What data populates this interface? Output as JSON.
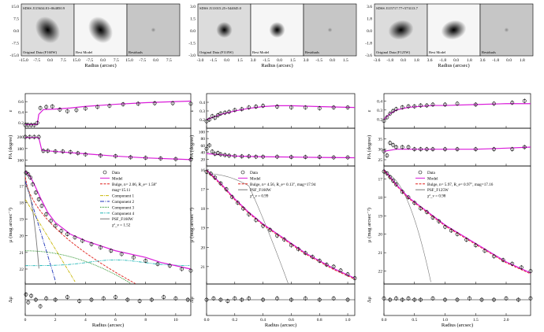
{
  "figure": {
    "panels": [
      {
        "id": "left",
        "images": {
          "object_name": "SDSS J115634.81+064850.9",
          "labels": [
            "Original Data (F160W)",
            "Best Model",
            "Residuals"
          ],
          "xticks": [
            "-15.0",
            "-7.5",
            "0.0",
            "7.5",
            "15.0",
            "-7.5",
            "0.0",
            "7.5",
            "15.0",
            "-7.5",
            "0.0",
            "7.5"
          ],
          "yticks": [
            "15.0",
            "7.5",
            "0.0",
            "-7.5",
            "-15.0"
          ],
          "xlabel": "Radius (arcsec)"
        },
        "legend": [
          "Data",
          "Model",
          "Bulge, n= 2.06, R_e= 1.58\"",
          "mag=15.11",
          "Component 1",
          "Component 2",
          "Component 3",
          "Component 4",
          "PSF_F160W",
          "χ²_ν = 1.52"
        ]
      },
      {
        "id": "middle",
        "images": {
          "object_name": "SDSS J111015.25+544045.0",
          "labels": [
            "Original Data (F110W)",
            "Best Model",
            "Residuals"
          ],
          "xticks": [
            "-3.0",
            "-1.5",
            "0.0",
            "1.5",
            "3.0",
            "-1.5",
            "0.0",
            "1.5",
            "3.0",
            "-1.5",
            "0.0",
            "1.5"
          ],
          "yticks": [
            "3.0",
            "1.5",
            "0.0",
            "-1.5",
            "-3.0"
          ],
          "xlabel": "Radius (arcsec)"
        },
        "legend": [
          "Data",
          "Model",
          "Bulge, n= 4.56, R_e= 0.13\", mag=17.94",
          "PSF_F160W",
          "χ²_ν = 0.99"
        ]
      },
      {
        "id": "right",
        "images": {
          "object_name": "SDSS J115717.77+573113.7",
          "labels": [
            "Original Data (F125W)",
            "Best Model",
            "Residuals"
          ],
          "xticks": [
            "-3.6",
            "-1.8",
            "0.0",
            "1.8",
            "3.6",
            "-1.8",
            "0.0",
            "1.8",
            "3.6",
            "-1.8",
            "0.0",
            "1.8"
          ],
          "yticks": [
            "3.6",
            "1.8",
            "0.0",
            "-1.8",
            "-3.6"
          ],
          "xlabel": "Radius (arcsec)"
        },
        "legend": [
          "Data",
          "Model",
          "Bulge, n= 5.97, R_e= 0.97\", mag=17.16",
          "PSF_F125W",
          "χ²_ν = 0.98"
        ]
      }
    ],
    "colors": {
      "model": "#d91bd9",
      "bulge": "#e0201b",
      "comp1": "#c9b80a",
      "comp2": "#1c32b8",
      "comp3": "#1b8a1b",
      "comp4": "#20b6b6",
      "psf": "#777777"
    }
  },
  "chart_data": [
    {
      "type": "scatter",
      "panel": "left",
      "title": "",
      "xlabel": "Radius (arcsec)",
      "xlim": [
        0,
        11
      ],
      "xticks": [
        0,
        2,
        4,
        6,
        8,
        10
      ],
      "subplots": [
        {
          "ylabel": "ε",
          "ylim": [
            0.1,
            0.75
          ],
          "yticks": [
            0.2,
            0.4,
            0.6
          ],
          "x": [
            0.0,
            0.2,
            0.4,
            0.6,
            0.8,
            1.0,
            1.4,
            1.8,
            2.3,
            2.8,
            3.4,
            4.0,
            4.8,
            5.6,
            6.5,
            7.5,
            8.6,
            9.8,
            11.0
          ],
          "y": [
            0.16,
            0.16,
            0.16,
            0.16,
            0.2,
            0.48,
            0.5,
            0.51,
            0.45,
            0.42,
            0.44,
            0.47,
            0.5,
            0.52,
            0.55,
            0.56,
            0.57,
            0.57,
            0.56
          ],
          "model_x": [
            0.0,
            0.8,
            0.9,
            1.2,
            2,
            3,
            4,
            6,
            8,
            10,
            11
          ],
          "model_y": [
            0.17,
            0.17,
            0.36,
            0.45,
            0.46,
            0.48,
            0.51,
            0.55,
            0.58,
            0.6,
            0.61
          ]
        },
        {
          "ylabel": "PA (degree)",
          "ylim": [
            150,
            215
          ],
          "yticks": [
            160,
            180,
            200
          ],
          "x": [
            0.0,
            0.3,
            0.6,
            0.9,
            1.2,
            1.5,
            2.0,
            2.5,
            3.0,
            3.5,
            4.0,
            5.0,
            6.0,
            7.0,
            8.0,
            9.0,
            10.0,
            11.0
          ],
          "y": [
            200,
            200,
            200,
            200,
            176,
            176,
            175,
            175,
            174,
            172,
            170,
            168,
            167,
            165,
            164,
            163,
            162,
            161
          ],
          "model_x": [
            0,
            0.9,
            1.1,
            2,
            4,
            6,
            8,
            11
          ],
          "model_y": [
            199,
            199,
            177,
            175,
            171,
            167,
            164,
            161
          ]
        },
        {
          "ylabel": "μ (mag arcsec⁻²)",
          "ylim": [
            22.9,
            15.8
          ],
          "yticks": [
            17,
            18,
            19,
            20,
            21,
            22
          ],
          "x": [
            0.05,
            0.2,
            0.35,
            0.5,
            0.7,
            0.9,
            1.1,
            1.4,
            1.7,
            2.0,
            2.4,
            2.8,
            3.3,
            3.8,
            4.4,
            5.0,
            5.7,
            6.4,
            7.2,
            8.0,
            8.8,
            9.6,
            10.4,
            11.0
          ],
          "y": [
            16.2,
            16.3,
            16.5,
            16.9,
            17.4,
            17.8,
            18.2,
            18.7,
            19.1,
            19.4,
            19.7,
            19.9,
            20.1,
            20.3,
            20.5,
            20.7,
            20.9,
            21.1,
            21.3,
            21.5,
            21.7,
            21.8,
            22.0,
            22.1
          ],
          "model_x": [
            0,
            0.3,
            0.6,
            1,
            1.5,
            2,
            3,
            4,
            5,
            6,
            7,
            8,
            9,
            10,
            11
          ],
          "model_y": [
            16.1,
            16.4,
            16.9,
            17.7,
            18.6,
            19.2,
            19.9,
            20.3,
            20.6,
            20.9,
            21.1,
            21.3,
            21.6,
            21.8,
            22.0
          ]
        },
        {
          "ylabel": "Δμ",
          "ylim": [
            -0.6,
            0.6
          ],
          "yticks": [],
          "x": [
            0.05,
            0.2,
            0.4,
            0.7,
            1.0,
            1.4,
            2.0,
            2.8,
            3.6,
            4.4,
            5.2,
            6.0,
            6.8,
            7.6,
            8.4,
            9.2,
            10.0,
            10.8
          ],
          "y": [
            0.2,
            -0.1,
            0.15,
            0.0,
            -0.25,
            0.05,
            0.0,
            0.1,
            -0.05,
            0.0,
            0.05,
            0.1,
            0.0,
            -0.05,
            0.0,
            0.1,
            0.05,
            0.0
          ]
        }
      ]
    },
    {
      "type": "scatter",
      "panel": "middle",
      "xlabel": "Radius (arcsec)",
      "xlim": [
        0,
        1.05
      ],
      "xticks": [
        0.0,
        0.2,
        0.4,
        0.6,
        0.8,
        1.0
      ],
      "subplots": [
        {
          "ylabel": "ε",
          "ylim": [
            0.1,
            0.5
          ],
          "yticks": [
            0.2,
            0.3,
            0.4
          ],
          "x": [
            0.0,
            0.02,
            0.04,
            0.06,
            0.08,
            0.1,
            0.13,
            0.16,
            0.2,
            0.25,
            0.3,
            0.35,
            0.4,
            0.5,
            0.6,
            0.7,
            0.8,
            0.9,
            1.0
          ],
          "y": [
            0.18,
            0.2,
            0.24,
            0.22,
            0.25,
            0.27,
            0.28,
            0.29,
            0.31,
            0.32,
            0.34,
            0.35,
            0.36,
            0.35,
            0.34,
            0.34,
            0.33,
            0.34,
            0.34
          ],
          "model_x": [
            0,
            0.05,
            0.1,
            0.2,
            0.3,
            0.4,
            0.5,
            0.6,
            0.8,
            1.05
          ],
          "model_y": [
            0.2,
            0.23,
            0.26,
            0.3,
            0.33,
            0.35,
            0.36,
            0.36,
            0.35,
            0.34
          ]
        },
        {
          "ylabel": "PA (degree)",
          "ylim": [
            0,
            110
          ],
          "yticks": [
            20,
            40,
            60,
            80,
            100
          ],
          "x": [
            0.0,
            0.02,
            0.04,
            0.06,
            0.08,
            0.1,
            0.13,
            0.16,
            0.2,
            0.25,
            0.3,
            0.35,
            0.4,
            0.5,
            0.6,
            0.7,
            0.8,
            0.9,
            1.0
          ],
          "y": [
            50,
            60,
            42,
            35,
            38,
            34,
            32,
            30,
            29,
            28,
            28,
            27,
            27,
            27,
            26,
            26,
            26,
            25,
            25
          ],
          "model_x": [
            0,
            0.1,
            0.2,
            0.4,
            0.6,
            0.8,
            1.05
          ],
          "model_y": [
            36,
            33,
            29,
            27,
            26,
            25,
            24
          ]
        },
        {
          "ylabel": "μ (mag arcsec⁻²)",
          "ylim": [
            21.9,
            15.8
          ],
          "yticks": [
            16,
            17,
            18,
            19,
            20,
            21
          ],
          "x": [
            0.0,
            0.03,
            0.06,
            0.1,
            0.14,
            0.18,
            0.22,
            0.26,
            0.3,
            0.35,
            0.4,
            0.45,
            0.5,
            0.55,
            0.6,
            0.65,
            0.7,
            0.75,
            0.8,
            0.85,
            0.9,
            0.95,
            1.0,
            1.05
          ],
          "y": [
            16.1,
            16.2,
            16.4,
            16.7,
            17.0,
            17.4,
            17.7,
            18.0,
            18.3,
            18.6,
            18.9,
            19.1,
            19.4,
            19.6,
            19.9,
            20.1,
            20.3,
            20.5,
            20.7,
            20.9,
            21.0,
            21.2,
            21.4,
            21.6
          ],
          "model_x": [
            0,
            0.1,
            0.2,
            0.3,
            0.4,
            0.5,
            0.6,
            0.7,
            0.8,
            0.9,
            1.05
          ],
          "model_y": [
            16.0,
            16.7,
            17.5,
            18.2,
            18.8,
            19.3,
            19.8,
            20.3,
            20.7,
            21.1,
            21.6
          ]
        },
        {
          "ylabel": "Δμ",
          "ylim": [
            -0.6,
            0.6
          ],
          "yticks": [],
          "x": [
            0.0,
            0.05,
            0.1,
            0.15,
            0.2,
            0.25,
            0.3,
            0.4,
            0.5,
            0.6,
            0.7,
            0.8,
            0.9,
            1.0
          ],
          "y": [
            0.0,
            0.05,
            0.0,
            -0.05,
            0.05,
            0.0,
            0.05,
            0.0,
            0.05,
            0.0,
            0.05,
            0.0,
            0.05,
            0.0
          ]
        }
      ]
    },
    {
      "type": "scatter",
      "panel": "right",
      "xlabel": "Radius (arcsec)",
      "xlim": [
        0,
        2.4
      ],
      "xticks": [
        0.0,
        0.5,
        1.0,
        1.5,
        2.0
      ],
      "subplots": [
        {
          "ylabel": "ε",
          "ylim": [
            0.1,
            0.48
          ],
          "yticks": [
            0.2,
            0.3,
            0.4
          ],
          "x": [
            0.0,
            0.05,
            0.1,
            0.15,
            0.2,
            0.3,
            0.4,
            0.5,
            0.6,
            0.7,
            0.8,
            1.0,
            1.2,
            1.5,
            1.8,
            2.1,
            2.3
          ],
          "y": [
            0.18,
            0.22,
            0.26,
            0.29,
            0.31,
            0.33,
            0.34,
            0.34,
            0.35,
            0.35,
            0.36,
            0.36,
            0.37,
            0.36,
            0.37,
            0.38,
            0.4
          ],
          "model_x": [
            0,
            0.1,
            0.2,
            0.4,
            0.6,
            0.8,
            1.0,
            1.5,
            2.0,
            2.4
          ],
          "model_y": [
            0.2,
            0.26,
            0.3,
            0.33,
            0.34,
            0.35,
            0.35,
            0.36,
            0.37,
            0.37
          ]
        },
        {
          "ylabel": "PA (degree)",
          "ylim": [
            22,
            40
          ],
          "yticks": [
            25,
            30,
            35
          ],
          "x": [
            0.0,
            0.05,
            0.1,
            0.15,
            0.2,
            0.3,
            0.4,
            0.5,
            0.6,
            0.7,
            0.8,
            1.0,
            1.2,
            1.5,
            1.8,
            2.1,
            2.3
          ],
          "y": [
            29,
            27,
            33,
            32,
            31,
            31,
            31,
            30,
            30,
            30,
            30,
            30,
            30,
            30,
            30,
            30,
            31
          ],
          "model_x": [
            0,
            0.2,
            0.5,
            1.0,
            1.5,
            2.0,
            2.4
          ],
          "model_y": [
            29,
            30,
            30,
            30,
            30,
            30.5,
            31
          ]
        },
        {
          "ylabel": "μ (mag arcsec⁻²)",
          "ylim": [
            22.7,
            16.3
          ],
          "yticks": [
            17,
            18,
            19,
            20,
            21,
            22
          ],
          "x": [
            0.0,
            0.05,
            0.1,
            0.15,
            0.2,
            0.3,
            0.4,
            0.5,
            0.6,
            0.7,
            0.8,
            0.9,
            1.0,
            1.1,
            1.2,
            1.35,
            1.5,
            1.65,
            1.8,
            1.95,
            2.1,
            2.25,
            2.4
          ],
          "y": [
            16.6,
            16.7,
            16.9,
            17.1,
            17.3,
            17.7,
            18.0,
            18.3,
            18.6,
            18.8,
            19.1,
            19.3,
            19.6,
            19.8,
            20.0,
            20.3,
            20.6,
            20.9,
            21.2,
            21.4,
            21.6,
            21.8,
            22.0
          ],
          "model_x": [
            0,
            0.2,
            0.4,
            0.6,
            0.8,
            1.0,
            1.2,
            1.4,
            1.6,
            1.8,
            2.0,
            2.2,
            2.4
          ],
          "model_y": [
            16.5,
            17.3,
            18.0,
            18.5,
            19.0,
            19.5,
            19.9,
            20.3,
            20.7,
            21.1,
            21.5,
            21.8,
            22.1
          ]
        },
        {
          "ylabel": "Δμ",
          "ylim": [
            -0.6,
            0.6
          ],
          "yticks": [],
          "x": [
            0.0,
            0.1,
            0.2,
            0.3,
            0.4,
            0.5,
            0.6,
            0.8,
            1.0,
            1.2,
            1.4,
            1.6,
            1.8,
            2.0,
            2.2,
            2.4
          ],
          "y": [
            0.05,
            0.0,
            0.05,
            0.0,
            0.05,
            0.0,
            0.0,
            0.05,
            0.0,
            0.0,
            0.05,
            0.0,
            0.0,
            0.05,
            0.0,
            0.05
          ]
        }
      ]
    }
  ]
}
